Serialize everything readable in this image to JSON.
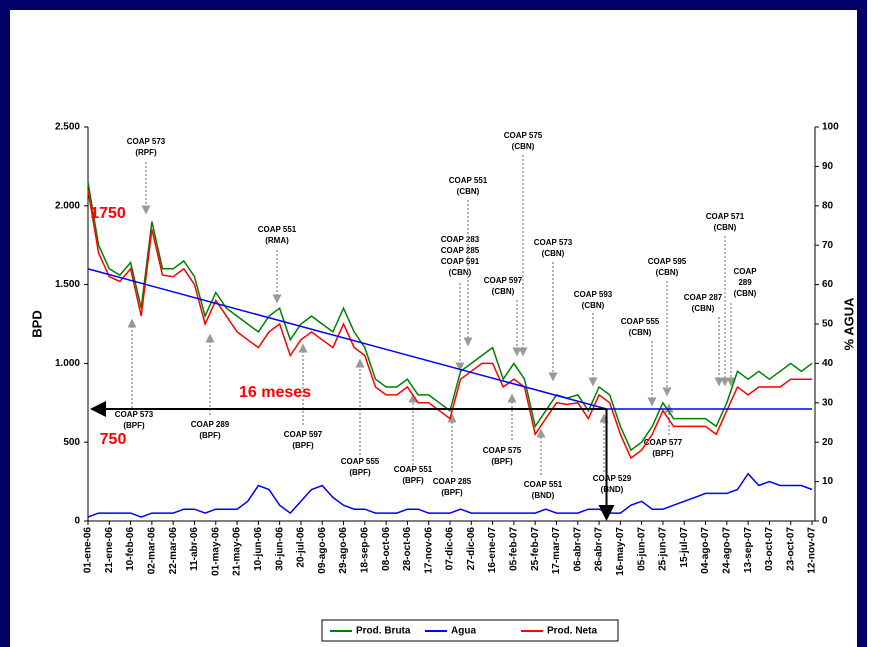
{
  "chart_data": {
    "type": "line",
    "y_label": "BPD",
    "y2_label": "% AGUA",
    "categories": [
      "01-ene-06",
      null,
      "21-ene-06",
      null,
      "10-feb-06",
      null,
      "02-mar-06",
      null,
      "22-mar-06",
      null,
      "11-abr-06",
      null,
      "01-may-06",
      null,
      "21-may-06",
      null,
      "10-jun-06",
      null,
      "30-jun-06",
      null,
      "20-jul-06",
      null,
      "09-ago-06",
      null,
      "29-ago-06",
      null,
      "18-sep-06",
      null,
      "08-oct-06",
      null,
      "28-oct-06",
      null,
      "17-nov-06",
      null,
      "07-dic-06",
      null,
      "27-dic-06",
      null,
      "16-ene-07",
      null,
      "05-feb-07",
      null,
      "25-feb-07",
      null,
      "17-mar-07",
      null,
      "06-abr-07",
      null,
      "26-abr-07",
      null,
      "16-may-07",
      null,
      "05-jun-07",
      null,
      "25-jun-07",
      null,
      "15-jul-07",
      null,
      "04-ago-07",
      null,
      "24-ago-07",
      null,
      "13-sep-07",
      null,
      "03-oct-07",
      null,
      "23-oct-07",
      null,
      "12-nov-07"
    ],
    "series": [
      {
        "name": "Prod. Bruta",
        "color": "#008000",
        "axis": "y",
        "values": [
          2150,
          1750,
          1600,
          1560,
          1640,
          1350,
          1900,
          1600,
          1600,
          1650,
          1550,
          1300,
          1450,
          1350,
          1300,
          1250,
          1200,
          1300,
          1350,
          1150,
          1250,
          1300,
          1250,
          1200,
          1350,
          1200,
          1100,
          900,
          850,
          850,
          900,
          800,
          800,
          750,
          700,
          950,
          1000,
          1050,
          1100,
          900,
          1000,
          900,
          600,
          700,
          800,
          780,
          800,
          700,
          850,
          800,
          600,
          450,
          500,
          600,
          750,
          650,
          650,
          650,
          650,
          600,
          750,
          950,
          900,
          950,
          900,
          950,
          1000,
          950,
          1000
        ]
      },
      {
        "name": "Agua",
        "color": "#0000ff",
        "axis": "y2",
        "values": [
          1,
          2,
          2,
          2,
          2,
          1,
          2,
          2,
          2,
          3,
          3,
          2,
          3,
          3,
          3,
          5,
          9,
          8,
          4,
          2,
          5,
          8,
          9,
          6,
          4,
          3,
          3,
          2,
          2,
          2,
          3,
          3,
          2,
          2,
          2,
          3,
          2,
          2,
          2,
          2,
          2,
          2,
          2,
          3,
          2,
          2,
          2,
          3,
          3,
          2,
          2,
          4,
          5,
          3,
          3,
          4,
          5,
          6,
          7,
          7,
          7,
          8,
          12,
          9,
          10,
          9,
          9,
          9,
          8
        ]
      },
      {
        "name": "Prod. Neta",
        "color": "#ff0000",
        "axis": "y",
        "values": [
          2100,
          1700,
          1550,
          1520,
          1600,
          1300,
          1850,
          1560,
          1550,
          1600,
          1500,
          1250,
          1400,
          1300,
          1200,
          1150,
          1100,
          1200,
          1250,
          1050,
          1150,
          1200,
          1150,
          1100,
          1250,
          1100,
          1050,
          850,
          800,
          800,
          850,
          750,
          750,
          700,
          650,
          900,
          950,
          1000,
          1000,
          850,
          900,
          850,
          550,
          650,
          750,
          740,
          750,
          650,
          800,
          750,
          550,
          400,
          450,
          550,
          700,
          600,
          600,
          600,
          600,
          550,
          700,
          850,
          800,
          850,
          850,
          850,
          900,
          900,
          900
        ]
      }
    ],
    "trend": {
      "color": "#0000ff",
      "x": [
        0,
        48.7,
        68
      ],
      "values": [
        1600,
        711,
        711
      ]
    },
    "ylim": [
      0,
      2500
    ],
    "yticks": [
      {
        "value": 0,
        "label": "0"
      },
      {
        "value": 500,
        "label": "500"
      },
      {
        "value": 1000,
        "label": "1.000"
      },
      {
        "value": 1500,
        "label": "1.500"
      },
      {
        "value": 2000,
        "label": "2.000"
      },
      {
        "value": 2500,
        "label": "2.500"
      }
    ],
    "y2lim": [
      0,
      100
    ],
    "y2ticks": [
      0,
      10,
      20,
      30,
      40,
      50,
      60,
      70,
      80,
      90,
      100
    ],
    "legend": "bottom",
    "highlights": [
      "1750",
      "750",
      "16 meses"
    ],
    "annotations": [
      [
        "COAP 573",
        "(RPF)"
      ],
      [
        "COAP 551",
        "(RMA)"
      ],
      [
        "COAP 283",
        "COAP 285",
        "COAP 591",
        "(CBN)"
      ],
      [
        "COAP 551",
        "(CBN)"
      ],
      [
        "COAP 575",
        "(CBN)"
      ],
      [
        "COAP 597",
        "(CBN)"
      ],
      [
        "COAP 573",
        "(CBN)"
      ],
      [
        "COAP 593",
        "(CBN)"
      ],
      [
        "COAP 595",
        "(CBN)"
      ],
      [
        "COAP 555",
        "(CBN)"
      ],
      [
        "COAP 571",
        "(CBN)"
      ],
      [
        "COAP 287",
        "(CBN)"
      ],
      [
        "COAP",
        "289",
        "(CBN)"
      ],
      [
        "COAP 573",
        "(BPF)"
      ],
      [
        "COAP 289",
        "(BPF)"
      ],
      [
        "COAP 597",
        "(BPF)"
      ],
      [
        "COAP 555",
        "(BPF)"
      ],
      [
        "COAP 551",
        "(BPF)"
      ],
      [
        "COAP 285",
        "(BPF)"
      ],
      [
        "COAP 575",
        "(BPF)"
      ],
      [
        "COAP 551",
        "(BND)"
      ],
      [
        "COAP 529",
        "(BND)"
      ],
      [
        "COAP 577",
        "(BPF)"
      ]
    ]
  }
}
